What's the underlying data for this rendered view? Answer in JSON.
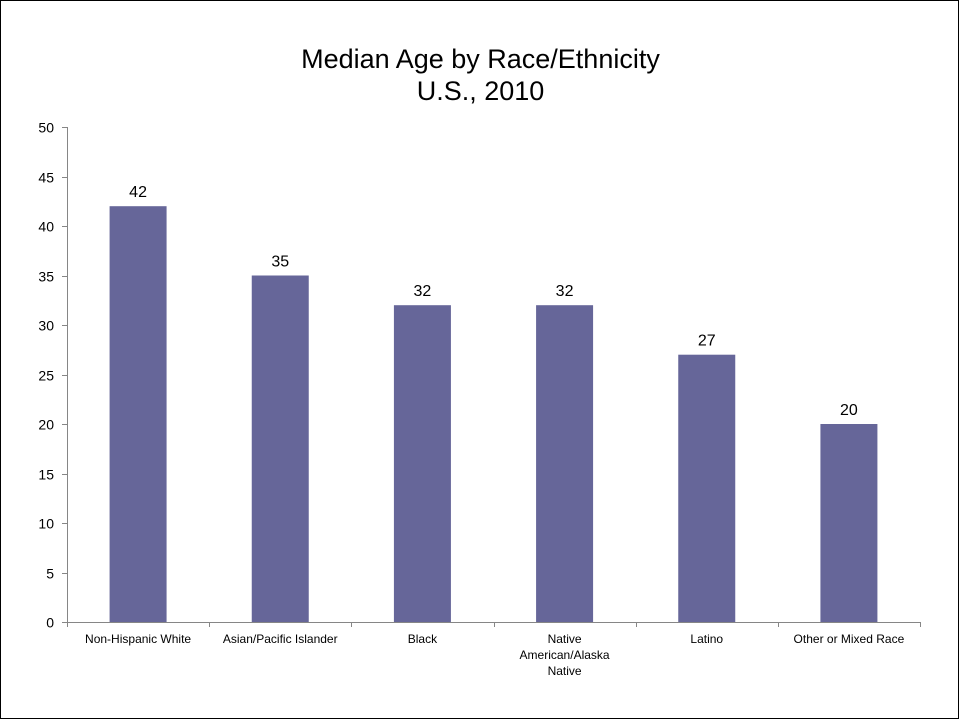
{
  "chart_data": {
    "type": "bar",
    "title": "Median Age by Race/Ethnicity",
    "subtitle": "U.S., 2010",
    "categories": [
      [
        "Non-Hispanic White"
      ],
      [
        "Asian/Pacific Islander"
      ],
      [
        "Black"
      ],
      [
        "Native",
        "American/Alaska",
        "Native"
      ],
      [
        "Latino"
      ],
      [
        "Other or Mixed Race"
      ]
    ],
    "values": [
      42,
      35,
      32,
      32,
      27,
      20
    ],
    "data_labels": [
      "42",
      "35",
      "32",
      "32",
      "27",
      "20"
    ],
    "y_ticks": [
      "0",
      "5",
      "10",
      "15",
      "20",
      "25",
      "30",
      "35",
      "40",
      "45",
      "50"
    ],
    "ylim": [
      0,
      50
    ],
    "ytick_step": 5,
    "grid": false,
    "legend": "none",
    "bar_color": "#666699"
  }
}
